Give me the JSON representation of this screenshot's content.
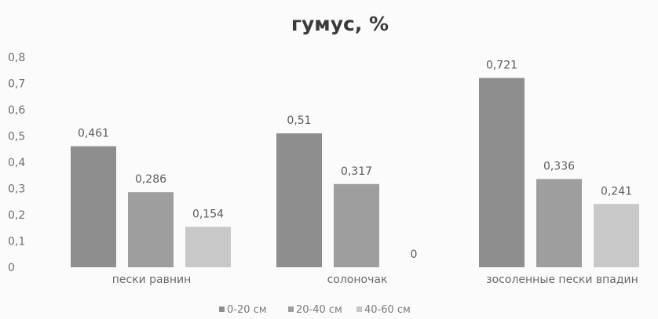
{
  "chart_data": {
    "type": "bar",
    "title": "гумус, %",
    "xlabel": "",
    "ylabel": "",
    "categories": [
      "пески равнин",
      "солоночак",
      "зосоленные пески впадин"
    ],
    "series": [
      {
        "name": "0-20 см",
        "values": [
          0.461,
          0.51,
          0.721
        ],
        "labels": [
          "0,461",
          "0,51",
          "0,721"
        ],
        "color": "#8e8e8e"
      },
      {
        "name": "20-40 см",
        "values": [
          0.286,
          0.317,
          0.336
        ],
        "labels": [
          "0,286",
          "0,317",
          "0,336"
        ],
        "color": "#9e9e9e"
      },
      {
        "name": "40-60 см",
        "values": [
          0.154,
          0,
          0.241
        ],
        "labels": [
          "0,154",
          "0",
          "0,241"
        ],
        "color": "#c8c8c8"
      }
    ],
    "ylim": [
      0,
      0.8
    ],
    "yticks": [
      "0",
      "0,1",
      "0,2",
      "0,3",
      "0,4",
      "0,5",
      "0,6",
      "0,7",
      "0,8"
    ],
    "grid": false,
    "legend": "bottom"
  }
}
